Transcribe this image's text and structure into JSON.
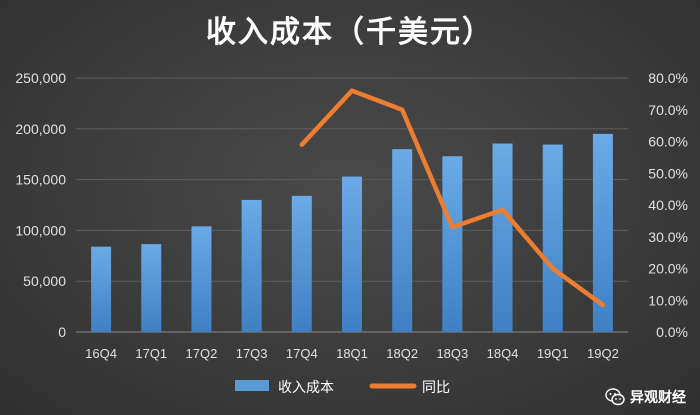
{
  "chart_data": {
    "type": "bar",
    "title": "收入成本（千美元）",
    "categories": [
      "16Q4",
      "17Q1",
      "17Q2",
      "17Q3",
      "17Q4",
      "18Q1",
      "18Q2",
      "18Q3",
      "18Q4",
      "19Q1",
      "19Q2"
    ],
    "series": [
      {
        "name": "收入成本",
        "type": "bar",
        "axis": "left",
        "color": "#5b9bd5",
        "values": [
          84000,
          86500,
          104000,
          130000,
          134000,
          153000,
          180000,
          173000,
          185500,
          184500,
          195000
        ]
      },
      {
        "name": "同比",
        "type": "line",
        "axis": "right",
        "color": "#ed7d31",
        "values": [
          null,
          null,
          null,
          null,
          0.59,
          0.76,
          0.7,
          0.33,
          0.385,
          0.2,
          0.085
        ]
      }
    ],
    "y_left": {
      "min": 0,
      "max": 250000,
      "ticks": [
        "0",
        "50,000",
        "100,000",
        "150,000",
        "200,000",
        "250,000"
      ]
    },
    "y_right": {
      "min": 0,
      "max": 0.8,
      "ticks": [
        "0.0%",
        "10.0%",
        "20.0%",
        "30.0%",
        "40.0%",
        "50.0%",
        "60.0%",
        "70.0%",
        "80.0%"
      ]
    },
    "grid": true,
    "legend": "bottom-center"
  },
  "watermark": {
    "text": "异观财经",
    "icon": "wechat-icon"
  }
}
